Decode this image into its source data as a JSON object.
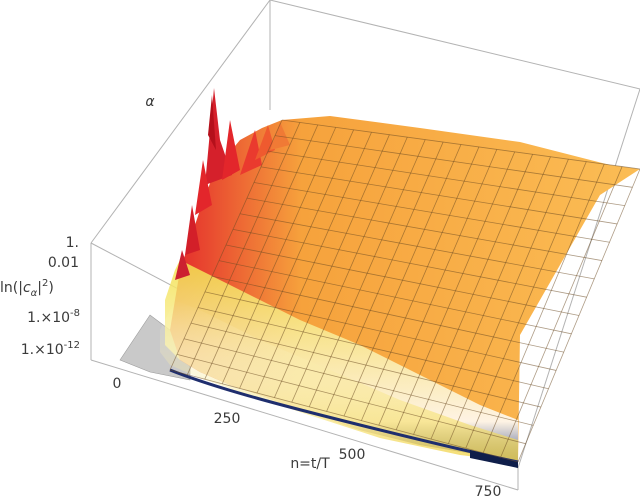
{
  "chart_data": {
    "type": "surface3d",
    "axes": {
      "x": {
        "label": "n=t/T",
        "ticks": [
          "0",
          "250",
          "500",
          "750"
        ],
        "tick_values": [
          0,
          250,
          500,
          750
        ],
        "range": [
          0,
          800
        ]
      },
      "y": {
        "label": "α",
        "range": [
          0,
          30
        ]
      },
      "z": {
        "label": "ln(|c_α|^2)",
        "ticks": [
          "1.",
          "0.01",
          "1.×10^-8",
          "1.×10^-12"
        ],
        "tick_values": [
          1,
          0.01,
          1e-08,
          1e-12
        ],
        "scale": "log"
      }
    },
    "surface": {
      "description_colors": [
        "#2e4fa0",
        "#ffffff",
        "#f3e04a",
        "#f7b34a",
        "#e3262b"
      ],
      "mesh": true
    },
    "box": true
  }
}
